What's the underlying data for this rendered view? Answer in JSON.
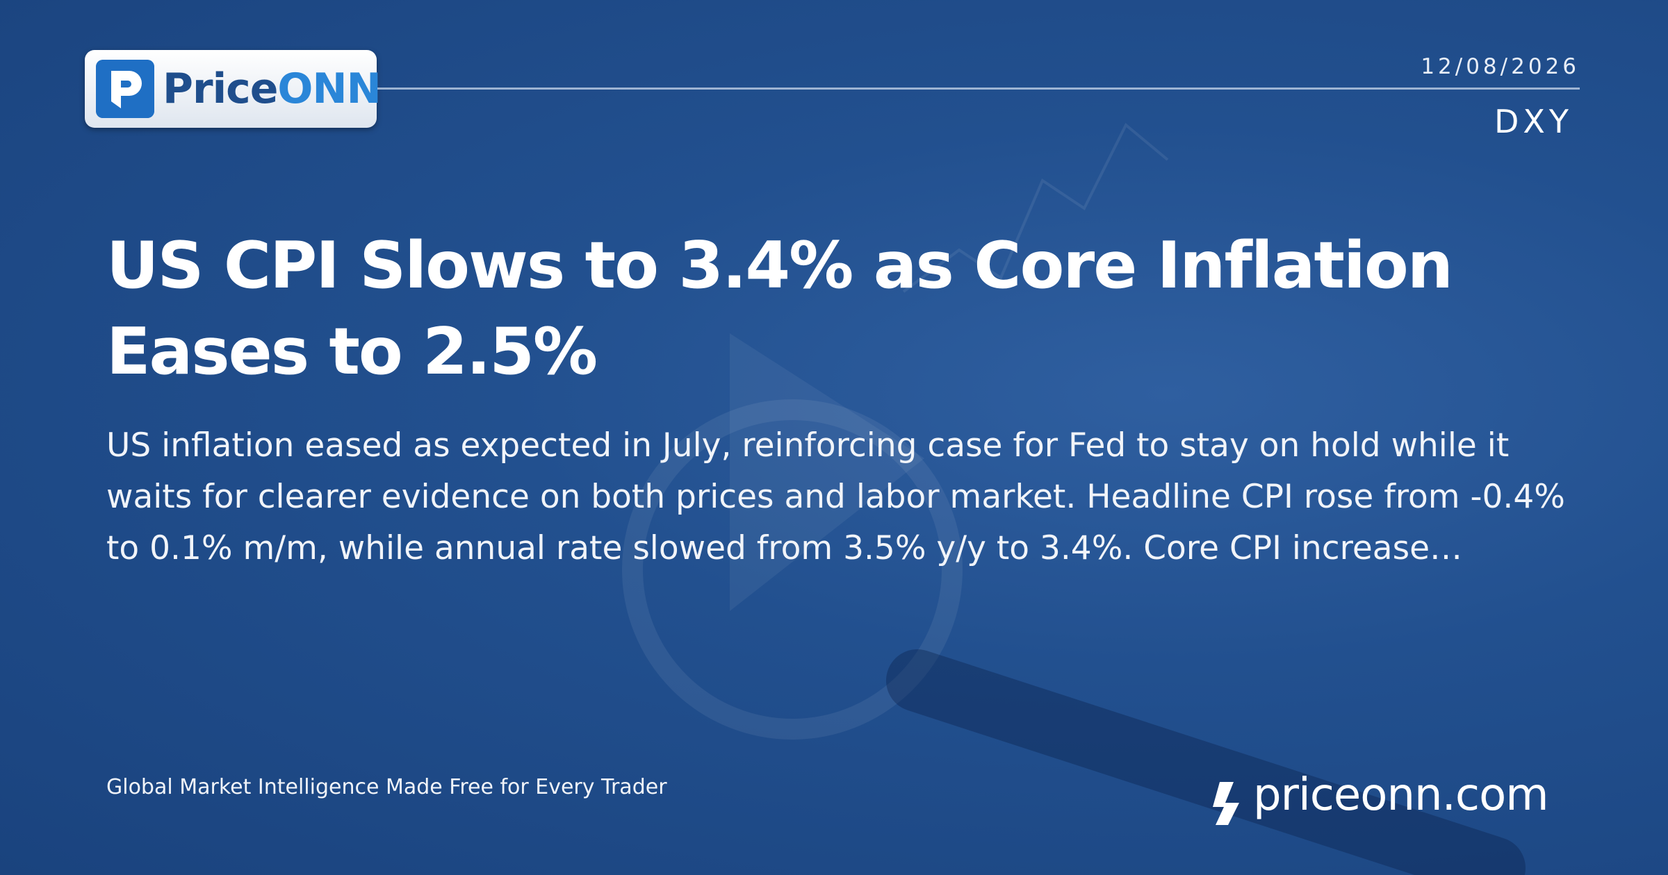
{
  "logo": {
    "text_a": "Price",
    "text_b": "ONN"
  },
  "date": "12/08/2026",
  "ticker": "DXY",
  "headline": "US CPI Slows to 3.4% as Core Inflation Eases to 2.5%",
  "summary": "US inflation eased as expected in July, reinforcing case for Fed to stay on hold while it waits for clearer evidence on both prices and labor market. Headline CPI rose from -0.4% to 0.1% m/m, while annual rate slowed from 3.5% y/y to 3.4%. Core CPI increase…",
  "tagline": "Global Market Intelligence Made Free for Every Trader",
  "site": "priceonn.com"
}
